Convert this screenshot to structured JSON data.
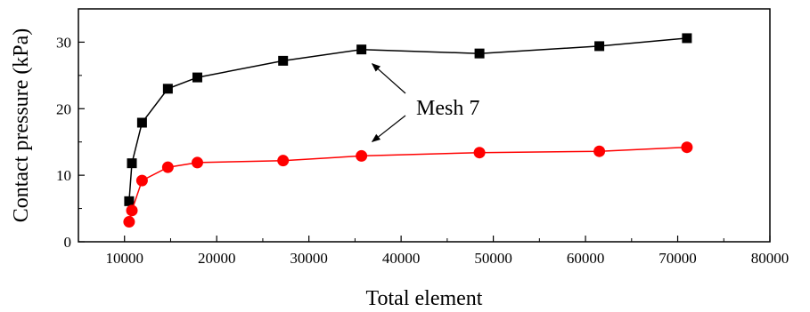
{
  "chart_data": {
    "type": "line",
    "xlabel": "Total element",
    "ylabel": "Contact pressure (kPa)",
    "xlim": [
      5000,
      80000
    ],
    "ylim": [
      0,
      35
    ],
    "xticks": [
      10000,
      20000,
      30000,
      40000,
      50000,
      60000,
      70000,
      80000
    ],
    "yticks": [
      0,
      10,
      20,
      30
    ],
    "grid": false,
    "legend": "none",
    "series": [
      {
        "color": "#000000",
        "marker": "square",
        "x": [
          10500,
          10800,
          11900,
          14700,
          17900,
          27200,
          35700,
          48500,
          61500,
          71000
        ],
        "y": [
          6.1,
          11.8,
          17.9,
          23.0,
          24.7,
          27.2,
          28.9,
          28.3,
          29.4,
          30.6
        ]
      },
      {
        "color": "#ff0000",
        "marker": "circle",
        "x": [
          10500,
          10800,
          11900,
          14700,
          17900,
          27200,
          35700,
          48500,
          61500,
          71000
        ],
        "y": [
          3.0,
          4.7,
          9.2,
          11.2,
          11.9,
          12.2,
          12.9,
          13.4,
          13.6,
          14.2
        ]
      }
    ],
    "annotations": [
      {
        "text": "Mesh 7",
        "points_to": [
          [
            35700,
            28.9
          ],
          [
            35700,
            12.9
          ]
        ]
      }
    ]
  }
}
